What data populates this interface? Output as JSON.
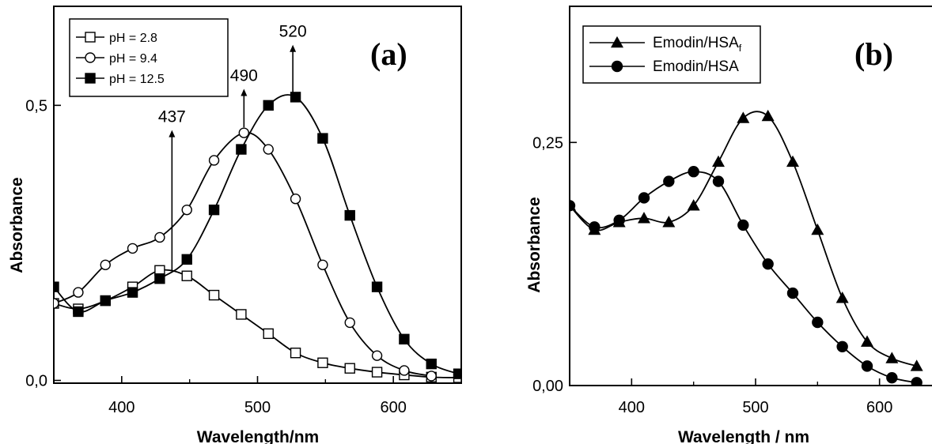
{
  "chart_data": [
    {
      "type": "line",
      "panel_label": "(a)",
      "xlabel": "Wavelength/nm",
      "ylabel": "Absorbance",
      "xlim": [
        350,
        650
      ],
      "ylim": [
        -0.005,
        0.68
      ],
      "x_ticks": [
        400,
        500,
        600
      ],
      "x_tick_labels": [
        "400",
        "500",
        "600"
      ],
      "y_ticks": [
        0.0,
        0.5
      ],
      "y_tick_labels": [
        "0,0",
        "0,5"
      ],
      "grid": false,
      "legend_position": "top-left",
      "series": [
        {
          "name": "pH = 2.8",
          "marker": "open-square",
          "x": [
            350,
            368,
            388,
            408,
            428,
            448,
            468,
            488,
            508,
            528,
            548,
            568,
            588,
            608,
            628,
            648
          ],
          "y": [
            0.14,
            0.13,
            0.145,
            0.17,
            0.2,
            0.19,
            0.155,
            0.12,
            0.085,
            0.05,
            0.032,
            0.022,
            0.015,
            0.01,
            0.006,
            0.005
          ],
          "color": "#000000"
        },
        {
          "name": "pH = 9.4",
          "marker": "open-circle",
          "x": [
            350,
            368,
            388,
            408,
            428,
            448,
            468,
            490,
            508,
            528,
            548,
            568,
            588,
            608,
            628
          ],
          "y": [
            0.14,
            0.16,
            0.21,
            0.24,
            0.26,
            0.31,
            0.4,
            0.45,
            0.42,
            0.33,
            0.21,
            0.105,
            0.045,
            0.018,
            0.008
          ],
          "color": "#000000"
        },
        {
          "name": "pH = 12.5",
          "marker": "filled-square",
          "x": [
            350,
            368,
            388,
            408,
            428,
            448,
            468,
            488,
            508,
            528,
            548,
            568,
            588,
            608,
            628,
            648
          ],
          "y": [
            0.17,
            0.125,
            0.145,
            0.16,
            0.185,
            0.22,
            0.31,
            0.42,
            0.5,
            0.515,
            0.44,
            0.3,
            0.17,
            0.075,
            0.03,
            0.012
          ],
          "color": "#000000"
        }
      ],
      "annotations": [
        {
          "text": "437",
          "x": 437,
          "y_from": 0.2,
          "y_to": 0.455
        },
        {
          "text": "490",
          "x": 490,
          "y_from": 0.46,
          "y_to": 0.53
        },
        {
          "text": "520",
          "x": 526,
          "y_from": 0.52,
          "y_to": 0.61
        }
      ]
    },
    {
      "type": "line",
      "panel_label": "(b)",
      "xlabel": "Wavelength / nm",
      "ylabel": "Absorbance",
      "xlim": [
        350,
        650
      ],
      "ylim": [
        0.0,
        0.39
      ],
      "x_ticks": [
        400,
        500,
        600
      ],
      "x_tick_labels": [
        "400",
        "500",
        "600"
      ],
      "y_ticks": [
        0.0,
        0.25
      ],
      "y_tick_labels": [
        "0,00",
        "0,25"
      ],
      "grid": false,
      "legend_position": "top-left",
      "series": [
        {
          "name": "Emodin/HSA",
          "name_subscript": "f",
          "marker": "filled-triangle",
          "x": [
            350,
            370,
            390,
            410,
            430,
            450,
            470,
            490,
            510,
            530,
            550,
            570,
            590,
            610,
            630
          ],
          "y": [
            0.185,
            0.16,
            0.168,
            0.172,
            0.168,
            0.185,
            0.23,
            0.275,
            0.277,
            0.23,
            0.16,
            0.09,
            0.045,
            0.028,
            0.02
          ],
          "color": "#000000"
        },
        {
          "name": "Emodin/HSA",
          "marker": "filled-circle",
          "x": [
            350,
            370,
            390,
            410,
            430,
            450,
            470,
            490,
            510,
            530,
            550,
            570,
            590,
            610,
            630
          ],
          "y": [
            0.185,
            0.163,
            0.17,
            0.193,
            0.21,
            0.22,
            0.21,
            0.165,
            0.125,
            0.095,
            0.065,
            0.04,
            0.02,
            0.008,
            0.003
          ],
          "color": "#000000"
        }
      ]
    }
  ]
}
